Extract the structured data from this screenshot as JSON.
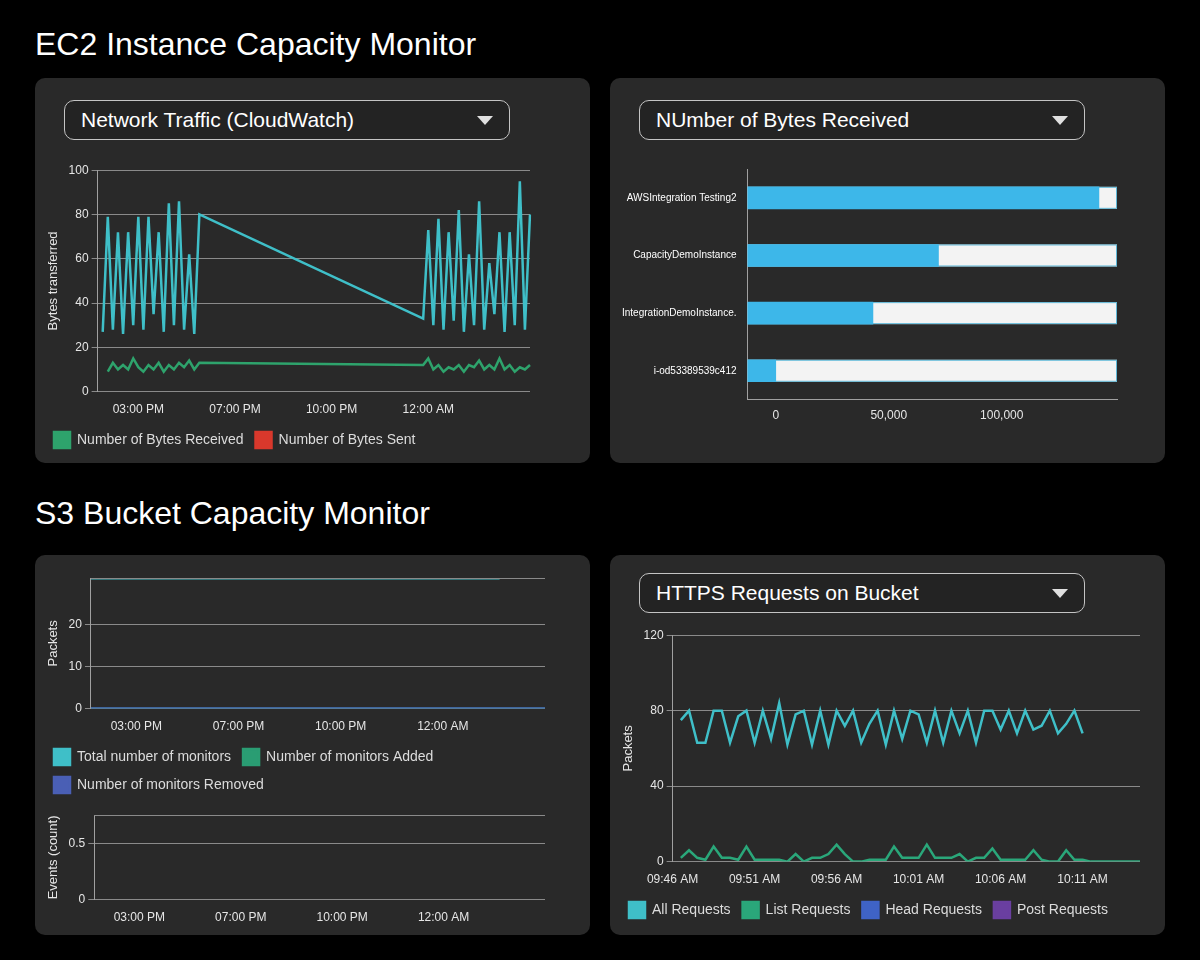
{
  "headings": [
    "EC2 Instance Capacity Monitor",
    "S3 Bucket Capacity Monitor"
  ],
  "chart_data": [
    {
      "type": "line",
      "title": "Network Traffic (CloudWatch)",
      "ylabel": "Bytes transferred",
      "categories": [
        null,
        null,
        null,
        null,
        null,
        null,
        null,
        null,
        "03:00 PM",
        null,
        null,
        null,
        null,
        null,
        null,
        null,
        null,
        null,
        null,
        null,
        null,
        null,
        null,
        null,
        null,
        null,
        null,
        "07:00 PM",
        null,
        null,
        null,
        null,
        null,
        null,
        null,
        null,
        null,
        null,
        null,
        null,
        null,
        null,
        null,
        null,
        null,
        null,
        "10:00 PM",
        null,
        null,
        null,
        null,
        null,
        null,
        null,
        null,
        null,
        null,
        null,
        null,
        null,
        null,
        null,
        null,
        null,
        null,
        "12:00 AM",
        null,
        null,
        null,
        null,
        null,
        null,
        null,
        null,
        null,
        null,
        null,
        null,
        null,
        null,
        null,
        null,
        null,
        null,
        null,
        null
      ],
      "series": [
        {
          "color": "#3fbfc8",
          "values": [
            null,
            27,
            79,
            28,
            72,
            26,
            72,
            30,
            79,
            28,
            79,
            35,
            72,
            27,
            85,
            30,
            86,
            28,
            62,
            26,
            80,
            null,
            null,
            null,
            null,
            null,
            null,
            null,
            null,
            null,
            null,
            null,
            null,
            null,
            null,
            null,
            null,
            null,
            null,
            null,
            null,
            null,
            null,
            null,
            null,
            null,
            null,
            null,
            null,
            null,
            null,
            null,
            null,
            null,
            null,
            null,
            null,
            null,
            null,
            null,
            null,
            null,
            null,
            null,
            33,
            73,
            30,
            78,
            28,
            72,
            32,
            82,
            27,
            62,
            30,
            86,
            28,
            58,
            35,
            72,
            27,
            72,
            30,
            95,
            28,
            80
          ]
        },
        {
          "name": "Number of Bytes Received",
          "color": "#2ea36c",
          "values": [
            null,
            null,
            9,
            13,
            10,
            12,
            10,
            15,
            11,
            9,
            12,
            10,
            13,
            9,
            12,
            10,
            13,
            11,
            14,
            10,
            13,
            null,
            null,
            null,
            null,
            null,
            null,
            null,
            null,
            null,
            null,
            null,
            null,
            null,
            null,
            null,
            null,
            null,
            null,
            null,
            null,
            null,
            null,
            null,
            null,
            null,
            null,
            null,
            null,
            null,
            null,
            null,
            null,
            null,
            null,
            null,
            null,
            null,
            null,
            null,
            null,
            null,
            null,
            null,
            12,
            15,
            10,
            12,
            9,
            11,
            10,
            12,
            9,
            12,
            11,
            14,
            10,
            12,
            10,
            15,
            10,
            12,
            9,
            11,
            10,
            12
          ]
        },
        {
          "name": "Number of Bytes Sent",
          "color": "#d9382c",
          "values": [
            null,
            null,
            null,
            null,
            null,
            null,
            null,
            null,
            null,
            null,
            null,
            null,
            null,
            null,
            null,
            null,
            null,
            null,
            null,
            null,
            null,
            null,
            null,
            null,
            null,
            null,
            null,
            null,
            null,
            null,
            null,
            null,
            null,
            null,
            null,
            null,
            null,
            null,
            null,
            null,
            null,
            null,
            null,
            null,
            null,
            null,
            null,
            null,
            null,
            null,
            null,
            null,
            null,
            null,
            null,
            null,
            null,
            null,
            null,
            null,
            null,
            null,
            null,
            null,
            null,
            null,
            null,
            null,
            null,
            null,
            null,
            null,
            null,
            null,
            null,
            null,
            null,
            null,
            null,
            null,
            null,
            null,
            null,
            null,
            null,
            null
          ]
        }
      ],
      "ylim": [
        0,
        100
      ],
      "yticks": [
        0,
        20,
        40,
        60,
        80,
        100
      ],
      "grid": true,
      "legend": "bottom"
    },
    {
      "type": "bar",
      "orientation": "horizontal",
      "title": "NUmber of Bytes Received",
      "categories": [
        "AWSIntegration Testing2",
        "CapacityDemoInstance",
        "IntegrationDemoInstance.",
        "i-od53389539c412"
      ],
      "values": [
        143000,
        72000,
        43000,
        0
      ],
      "color": "#3db7e9",
      "xlim": [
        -12500,
        151000
      ],
      "xticks": [
        0,
        {
          "value": 50000,
          "label": "50,000"
        },
        {
          "value": 100000,
          "label": "100,000"
        }
      ],
      "grid": false
    },
    {
      "type": "line",
      "ylabel": "Packets",
      "categories": [
        null,
        null,
        null,
        null,
        "03:00 PM",
        null,
        null,
        null,
        null,
        null,
        null,
        null,
        null,
        "07:00 PM",
        null,
        null,
        null,
        null,
        null,
        null,
        null,
        null,
        "10:00 PM",
        null,
        null,
        null,
        null,
        null,
        null,
        null,
        null,
        "12:00 AM",
        null,
        null,
        null,
        null,
        null,
        null,
        null,
        null,
        null
      ],
      "series": [
        {
          "name": "Total number of monitors",
          "color": "#3fbfc8",
          "values": [
            31,
            31,
            31,
            31,
            31,
            31,
            31,
            31,
            31,
            31,
            31,
            31,
            31,
            31,
            31,
            31,
            31,
            31,
            31,
            31,
            31,
            31,
            31,
            31,
            31,
            31,
            31,
            31,
            31,
            31,
            31,
            31,
            31,
            31,
            31,
            31,
            31,
            null,
            null,
            null,
            null
          ]
        },
        {
          "name": "Number of monitors Added",
          "color": "#2a9d73",
          "values": [
            0,
            0,
            0,
            0,
            0,
            0,
            0,
            0,
            0,
            0,
            0,
            0,
            0,
            0,
            0,
            0,
            0,
            0,
            0,
            0,
            0,
            0,
            0,
            0,
            0,
            0,
            0,
            0,
            0,
            0,
            0,
            0,
            0,
            0,
            0,
            0,
            0,
            0,
            0,
            0,
            0
          ]
        },
        {
          "name": "Number of monitors Removed",
          "color": "#4a5fb5",
          "values": [
            0,
            0,
            0,
            0,
            0,
            0,
            0,
            0,
            0,
            0,
            0,
            0,
            0,
            0,
            0,
            0,
            0,
            0,
            0,
            0,
            0,
            0,
            0,
            0,
            0,
            0,
            0,
            0,
            0,
            0,
            0,
            0,
            0,
            0,
            0,
            0,
            0,
            0,
            0,
            0,
            0
          ]
        }
      ],
      "ylim": [
        0,
        31
      ],
      "yticks": [
        0,
        10,
        20
      ],
      "grid": true,
      "legend": "bottom"
    },
    {
      "type": "line",
      "ylabel": "Events (count)",
      "categories": [
        null,
        null,
        null,
        null,
        "03:00 PM",
        null,
        null,
        null,
        null,
        null,
        null,
        null,
        null,
        "07:00 PM",
        null,
        null,
        null,
        null,
        null,
        null,
        null,
        null,
        "10:00 PM",
        null,
        null,
        null,
        null,
        null,
        null,
        null,
        null,
        "12:00 AM",
        null,
        null,
        null,
        null,
        null,
        null,
        null,
        null,
        null
      ],
      "series": [],
      "ylim": [
        0,
        0.75
      ],
      "yticks": [
        0,
        0.5
      ],
      "grid": true
    },
    {
      "type": "line",
      "title": "HTTPS Requests on Bucket",
      "ylabel": "Packets",
      "categories": [
        "09:46 AM",
        null,
        null,
        null,
        null,
        null,
        null,
        null,
        null,
        null,
        "09:51 AM",
        null,
        null,
        null,
        null,
        null,
        null,
        null,
        null,
        null,
        "09:56 AM",
        null,
        null,
        null,
        null,
        null,
        null,
        null,
        null,
        null,
        "10:01 AM",
        null,
        null,
        null,
        null,
        null,
        null,
        null,
        null,
        null,
        "10:06 AM",
        null,
        null,
        null,
        null,
        null,
        null,
        null,
        null,
        null,
        "10:11 AM",
        null,
        null,
        null,
        null,
        null,
        null,
        null
      ],
      "series": [
        {
          "name": "All Requests",
          "color": "#3fbfc8",
          "values": [
            null,
            75,
            80,
            63,
            63,
            80,
            80,
            63,
            77,
            80,
            63,
            80,
            65,
            84,
            62,
            78,
            80,
            62,
            80,
            62,
            80,
            72,
            80,
            63,
            73,
            80,
            62,
            80,
            65,
            80,
            78,
            63,
            80,
            63,
            80,
            68,
            80,
            63,
            80,
            80,
            70,
            80,
            68,
            80,
            70,
            72,
            80,
            68,
            73,
            80,
            68,
            null,
            null,
            null,
            null,
            null,
            null,
            null
          ]
        },
        {
          "name": "List Requests",
          "color": "#2aa77a",
          "values": [
            null,
            2,
            6,
            2,
            1,
            8,
            2,
            2,
            1,
            8,
            1,
            1,
            1,
            1,
            0,
            4,
            0,
            2,
            2,
            4,
            9,
            4,
            0,
            0,
            1,
            1,
            1,
            8,
            2,
            2,
            2,
            9,
            2,
            2,
            2,
            4,
            0,
            2,
            2,
            7,
            1,
            1,
            1,
            1,
            6,
            1,
            0,
            0,
            6,
            1,
            1,
            0,
            0,
            0,
            0,
            0,
            0,
            0
          ]
        },
        {
          "name": "Head Requests",
          "color": "#3f63c6",
          "values": [
            null,
            null,
            null,
            null,
            null,
            null,
            null,
            null,
            null,
            null,
            null,
            null,
            null,
            null,
            null,
            null,
            null,
            null,
            null,
            null,
            null,
            null,
            null,
            null,
            null,
            null,
            null,
            null,
            null,
            null,
            null,
            null,
            null,
            null,
            null,
            null,
            null,
            null,
            null,
            null,
            null,
            null,
            null,
            null,
            null,
            null,
            null,
            null,
            null,
            null,
            null,
            null,
            null,
            null,
            null,
            null,
            null,
            null
          ]
        },
        {
          "name": "Post Requests",
          "color": "#6a3fa0",
          "values": [
            null,
            null,
            null,
            null,
            null,
            null,
            null,
            null,
            null,
            null,
            null,
            null,
            null,
            null,
            null,
            null,
            null,
            null,
            null,
            null,
            null,
            null,
            null,
            null,
            null,
            null,
            null,
            null,
            null,
            null,
            null,
            null,
            null,
            null,
            null,
            null,
            null,
            null,
            null,
            null,
            null,
            null,
            null,
            null,
            null,
            null,
            null,
            null,
            null,
            null,
            null,
            null,
            null,
            null,
            null,
            null,
            null,
            null
          ]
        }
      ],
      "ylim": [
        0,
        120
      ],
      "yticks": [
        0,
        40,
        80,
        120
      ],
      "grid": true,
      "legend": "bottom"
    }
  ]
}
